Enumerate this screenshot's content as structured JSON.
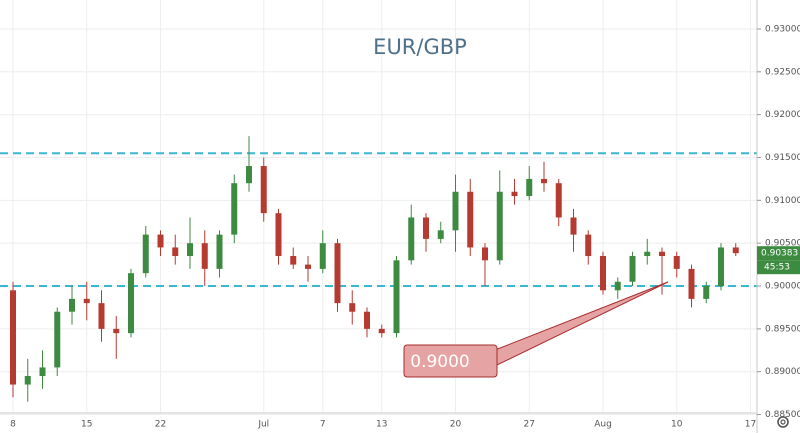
{
  "chart_data": {
    "type": "candlestick",
    "title": "EUR/GBP",
    "categories": [
      "8",
      null,
      null,
      null,
      null,
      "15",
      null,
      null,
      null,
      null,
      "22",
      null,
      null,
      null,
      null,
      null,
      null,
      "Jul",
      null,
      null,
      null,
      "7",
      null,
      null,
      null,
      "13",
      null,
      null,
      null,
      null,
      "20",
      null,
      null,
      null,
      null,
      "27",
      null,
      null,
      null,
      null,
      "Aug",
      null,
      null,
      null,
      null,
      "10",
      null,
      null,
      null,
      null,
      "17"
    ],
    "open": [
      0.8995,
      0.8885,
      0.8895,
      0.8905,
      0.897,
      0.8985,
      0.898,
      0.895,
      0.8945,
      0.9015,
      0.906,
      0.9045,
      0.9035,
      0.905,
      0.902,
      0.906,
      0.912,
      0.914,
      0.9085,
      0.9035,
      0.9025,
      0.902,
      0.905,
      0.898,
      0.897,
      0.895,
      0.8945,
      0.903,
      0.908,
      0.9055,
      0.9065,
      0.911,
      0.9045,
      0.903,
      0.911,
      0.9105,
      0.9125,
      0.912,
      0.908,
      0.906,
      0.9035,
      0.8995,
      0.9005,
      0.9035,
      0.904,
      0.9035,
      0.902,
      0.8985,
      0.9,
      0.9045,
      null
    ],
    "high": [
      0.9005,
      0.8915,
      0.8925,
      0.8975,
      0.9,
      0.9005,
      0.8995,
      0.8965,
      0.902,
      0.907,
      0.9065,
      0.906,
      0.908,
      0.9065,
      0.9065,
      0.913,
      0.9175,
      0.915,
      0.909,
      0.9045,
      0.9035,
      0.9065,
      0.9055,
      0.8995,
      0.8975,
      0.8955,
      0.9035,
      0.9095,
      0.9085,
      0.9075,
      0.913,
      0.9125,
      0.905,
      0.9135,
      0.9125,
      0.914,
      0.9145,
      0.9125,
      0.909,
      0.9065,
      0.904,
      0.901,
      0.904,
      0.9055,
      0.9045,
      0.904,
      0.9025,
      0.9005,
      0.905,
      0.905,
      null
    ],
    "low": [
      0.887,
      0.8865,
      0.888,
      0.8895,
      0.8955,
      0.896,
      0.8935,
      0.8915,
      0.894,
      0.901,
      0.9035,
      0.9025,
      0.902,
      0.9,
      0.901,
      0.905,
      0.911,
      0.9075,
      0.9025,
      0.902,
      0.9005,
      0.9015,
      0.897,
      0.8955,
      0.894,
      0.894,
      0.894,
      0.9025,
      0.904,
      0.905,
      0.904,
      0.9035,
      0.9,
      0.9025,
      0.9095,
      0.91,
      0.911,
      0.907,
      0.904,
      0.9025,
      0.899,
      0.8985,
      0.9,
      0.9025,
      0.899,
      0.901,
      0.8975,
      0.898,
      0.8995,
      0.9035,
      null
    ],
    "close": [
      0.8885,
      0.8895,
      0.8905,
      0.897,
      0.8985,
      0.898,
      0.895,
      0.8945,
      0.9015,
      0.906,
      0.9045,
      0.9035,
      0.905,
      0.902,
      0.906,
      0.912,
      0.914,
      0.9085,
      0.9035,
      0.9025,
      0.902,
      0.905,
      0.898,
      0.897,
      0.895,
      0.8945,
      0.903,
      0.908,
      0.9055,
      0.9065,
      0.911,
      0.9045,
      0.903,
      0.911,
      0.9105,
      0.9125,
      0.912,
      0.908,
      0.906,
      0.9035,
      0.8995,
      0.9005,
      0.9035,
      0.904,
      0.9035,
      0.902,
      0.8985,
      0.9,
      0.9045,
      0.90383,
      null
    ],
    "up_color": "#3d8b40",
    "down_color": "#b53a30",
    "ylim": [
      0.88518,
      0.93338
    ],
    "yticks": [
      {
        "value": 0.885,
        "label": "0.88500"
      },
      {
        "value": 0.89,
        "label": "0.89000"
      },
      {
        "value": 0.895,
        "label": "0.89500"
      },
      {
        "value": 0.9,
        "label": "0.90000"
      },
      {
        "value": 0.905,
        "label": "0.90500"
      },
      {
        "value": 0.91,
        "label": "0.91000"
      },
      {
        "value": 0.915,
        "label": "0.91500"
      },
      {
        "value": 0.92,
        "label": "0.92000"
      },
      {
        "value": 0.925,
        "label": "0.92500"
      },
      {
        "value": 0.93,
        "label": "0.93000"
      }
    ],
    "grid": true,
    "levels": [
      0.9155,
      0.9
    ],
    "level_color": "#3bb6cf",
    "last_price": 0.90383,
    "countdown": "45:53",
    "annotation": "0.9000"
  }
}
